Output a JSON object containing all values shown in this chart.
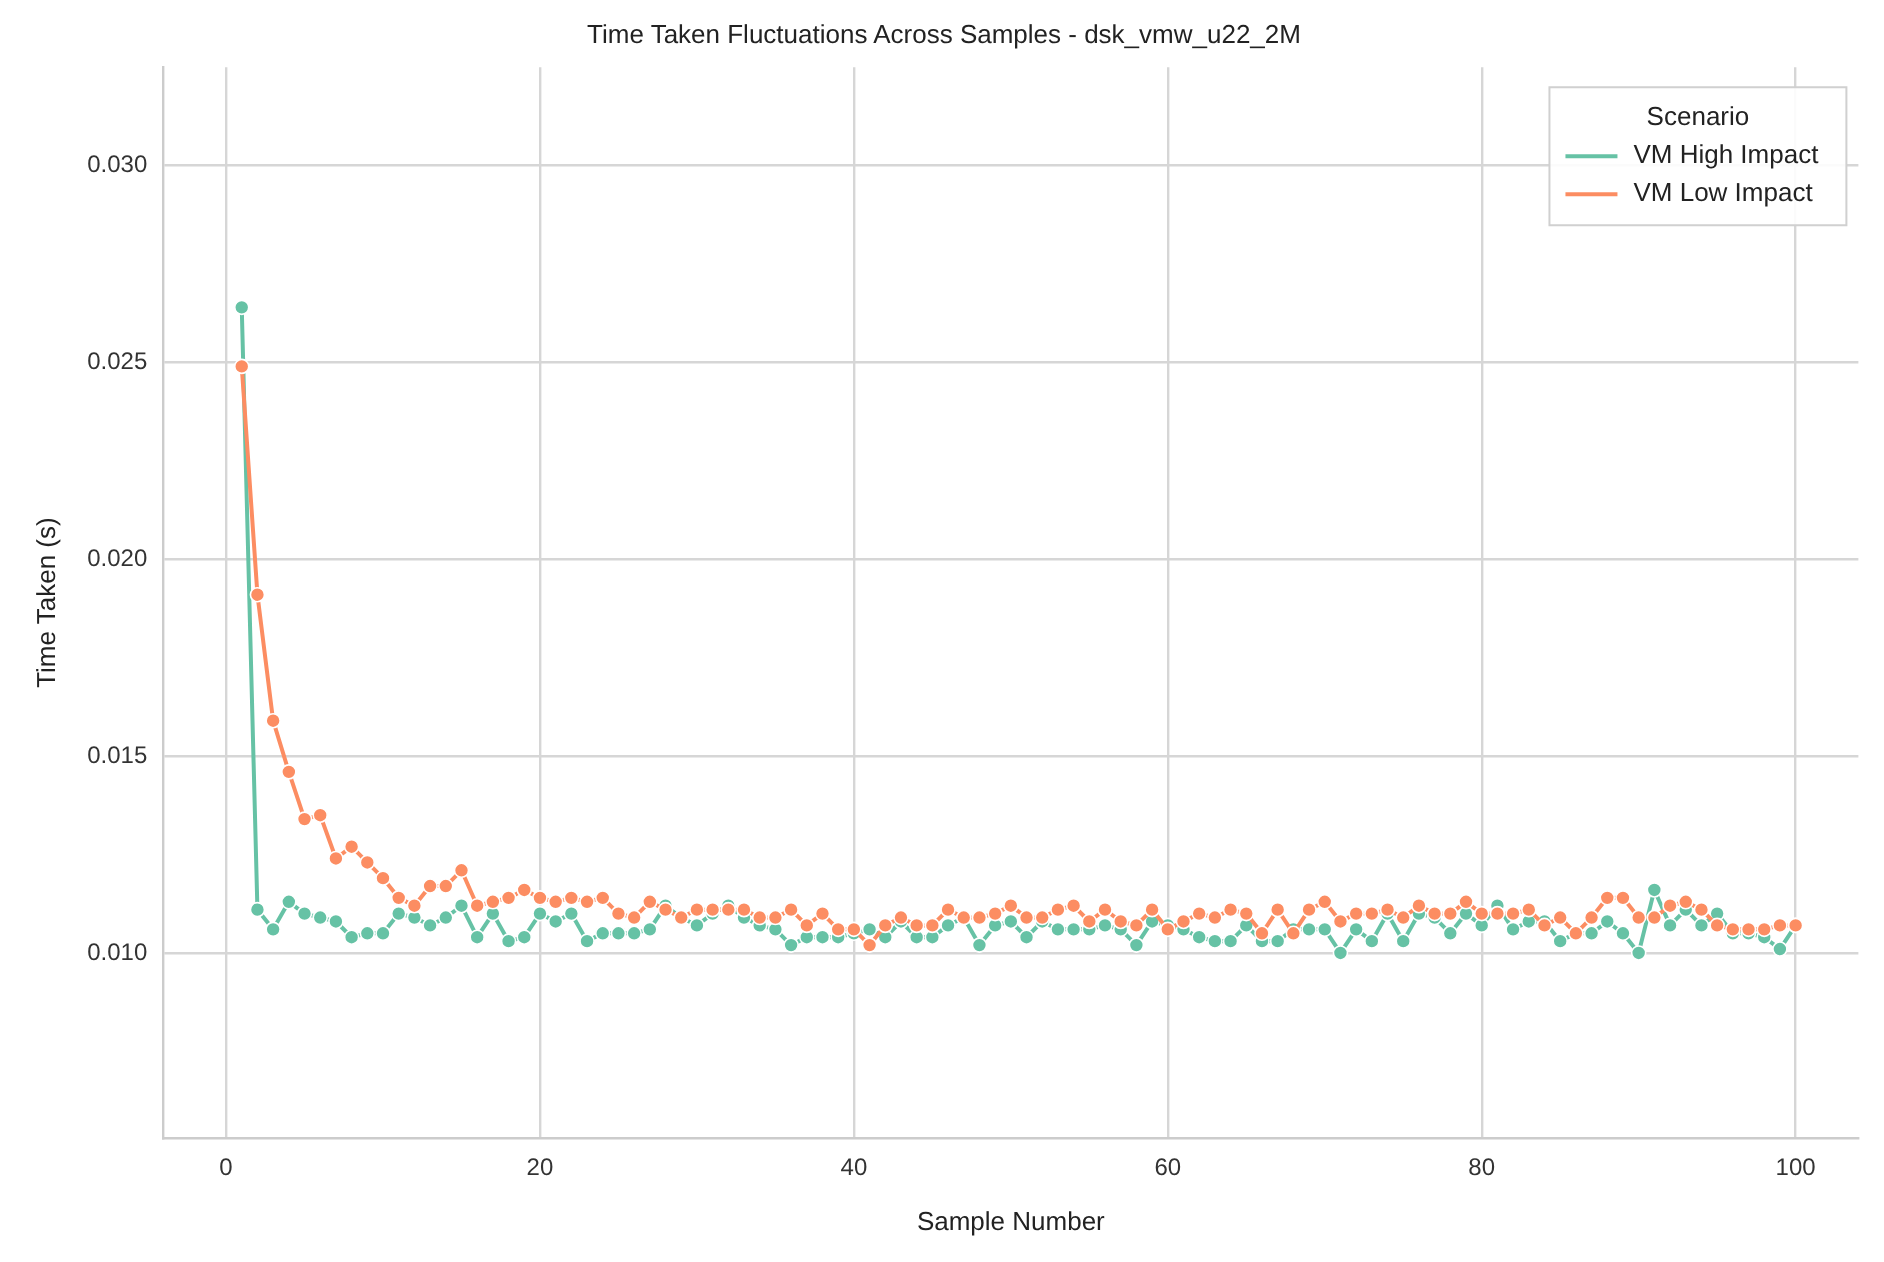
{
  "chart_data": {
    "type": "line",
    "title": "Time Taken Fluctuations Across Samples - dsk_vmw_u22_2M",
    "xlabel": "Sample Number",
    "ylabel": "Time Taken (s)",
    "legend_title": "Scenario",
    "legend": "top right",
    "grid": true,
    "marker": "circle",
    "line_style": "solid",
    "x": [
      1,
      2,
      3,
      4,
      5,
      6,
      7,
      8,
      9,
      10,
      11,
      12,
      13,
      14,
      15,
      16,
      17,
      18,
      19,
      20,
      21,
      22,
      23,
      24,
      25,
      26,
      27,
      28,
      29,
      30,
      31,
      32,
      33,
      34,
      35,
      36,
      37,
      38,
      39,
      40,
      41,
      42,
      43,
      44,
      45,
      46,
      47,
      48,
      49,
      50,
      51,
      52,
      53,
      54,
      55,
      56,
      57,
      58,
      59,
      60,
      61,
      62,
      63,
      64,
      65,
      66,
      67,
      68,
      69,
      70,
      71,
      72,
      73,
      74,
      75,
      76,
      77,
      78,
      79,
      80,
      81,
      82,
      83,
      84,
      85,
      86,
      87,
      88,
      89,
      90,
      91,
      92,
      93,
      94,
      95,
      96,
      97,
      98,
      99,
      100
    ],
    "xlim": [
      -4,
      104
    ],
    "xticks": [
      0,
      20,
      40,
      60,
      80,
      100
    ],
    "ylim": [
      0.0053,
      0.0325
    ],
    "yticks": [
      {
        "value": 0.01,
        "label": "0.010"
      },
      0.015,
      {
        "value": 0.02,
        "label": "0.020"
      },
      0.025,
      {
        "value": 0.03,
        "label": "0.030"
      }
    ],
    "series": [
      {
        "name": "VM High Impact",
        "color": "#66c2a5",
        "values": [
          0.0264,
          0.0111,
          0.0106,
          0.0113,
          0.011,
          0.0109,
          0.0108,
          0.0104,
          0.0105,
          0.0105,
          0.011,
          0.0109,
          0.0107,
          0.0109,
          0.0112,
          0.0104,
          0.011,
          0.0103,
          0.0104,
          0.011,
          0.0108,
          0.011,
          0.0103,
          0.0105,
          0.0105,
          0.0105,
          0.0106,
          0.0112,
          0.0109,
          0.0107,
          0.011,
          0.0112,
          0.0109,
          0.0107,
          0.0106,
          0.0102,
          0.0104,
          0.0104,
          0.0104,
          0.0105,
          0.0106,
          0.0104,
          0.0108,
          0.0104,
          0.0104,
          0.0107,
          0.0109,
          0.0102,
          0.0107,
          0.0108,
          0.0104,
          0.0108,
          0.0106,
          0.0106,
          0.0106,
          0.0107,
          0.0106,
          0.0102,
          0.0108,
          0.0107,
          0.0106,
          0.0104,
          0.0103,
          0.0103,
          0.0107,
          0.0103,
          0.0103,
          0.0106,
          0.0106,
          0.0106,
          0.01,
          0.0106,
          0.0103,
          0.011,
          0.0103,
          0.011,
          0.0109,
          0.0105,
          0.011,
          0.0107,
          0.0112,
          0.0106,
          0.0108,
          0.0108,
          0.0103,
          0.0105,
          0.0105,
          0.0108,
          0.0105,
          0.01,
          0.0116,
          0.0107,
          0.0111,
          0.0107,
          0.011,
          0.0105,
          0.0105,
          0.0104,
          0.0101,
          0.0107
        ]
      },
      {
        "name": "VM Low Impact",
        "color": "#fc8d62",
        "values": [
          0.0249,
          0.0191,
          0.0159,
          0.0146,
          0.0134,
          0.0135,
          0.0124,
          0.0127,
          0.0123,
          0.0119,
          0.0114,
          0.0112,
          0.0117,
          0.0117,
          0.0121,
          0.0112,
          0.0113,
          0.0114,
          0.0116,
          0.0114,
          0.0113,
          0.0114,
          0.0113,
          0.0114,
          0.011,
          0.0109,
          0.0113,
          0.0111,
          0.0109,
          0.0111,
          0.0111,
          0.0111,
          0.0111,
          0.0109,
          0.0109,
          0.0111,
          0.0107,
          0.011,
          0.0106,
          0.0106,
          0.0102,
          0.0107,
          0.0109,
          0.0107,
          0.0107,
          0.0111,
          0.0109,
          0.0109,
          0.011,
          0.0112,
          0.0109,
          0.0109,
          0.0111,
          0.0112,
          0.0108,
          0.0111,
          0.0108,
          0.0107,
          0.0111,
          0.0106,
          0.0108,
          0.011,
          0.0109,
          0.0111,
          0.011,
          0.0105,
          0.0111,
          0.0105,
          0.0111,
          0.0113,
          0.0108,
          0.011,
          0.011,
          0.0111,
          0.0109,
          0.0112,
          0.011,
          0.011,
          0.0113,
          0.011,
          0.011,
          0.011,
          0.0111,
          0.0107,
          0.0109,
          0.0105,
          0.0109,
          0.0114,
          0.0114,
          0.0109,
          0.0109,
          0.0112,
          0.0113,
          0.0111,
          0.0107,
          0.0106,
          0.0106,
          0.0106,
          0.0107,
          0.0107
        ]
      }
    ]
  }
}
